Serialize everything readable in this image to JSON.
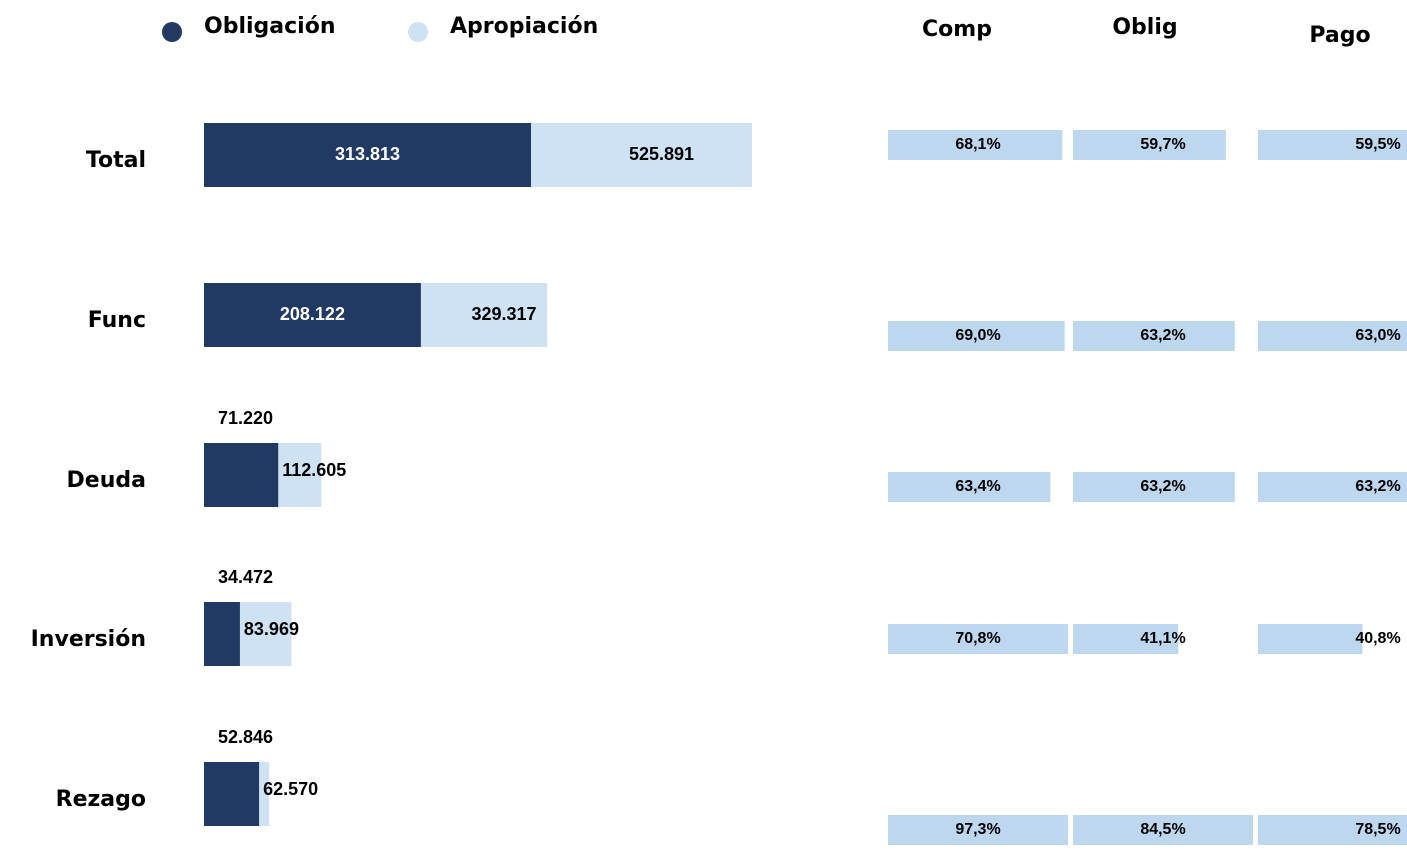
{
  "chart_data": {
    "type": "bar",
    "categories": [
      "Total",
      "Func",
      "Deuda",
      "Inversión",
      "Rezago"
    ],
    "series": [
      {
        "name": "Obligación",
        "color": "#213a63",
        "values": [
          313813,
          208122,
          71220,
          34472,
          52846
        ],
        "value_labels": [
          "313.813",
          "208.122",
          "71.220",
          "34.472",
          "52.846"
        ]
      },
      {
        "name": "Apropiación",
        "color": "#cfe2f3",
        "values": [
          525891,
          329317,
          112605,
          83969,
          62570
        ],
        "value_labels": [
          "525.891",
          "329.317",
          "112.605",
          "83.969",
          "62.570"
        ]
      }
    ],
    "table": {
      "color": "#bdd7ee",
      "columns": [
        {
          "name": "Comp",
          "values": [
            68.1,
            69.0,
            63.4,
            70.8,
            97.3
          ],
          "value_labels": [
            "68,1%",
            "69,0%",
            "63,4%",
            "70,8%",
            "97,3%"
          ]
        },
        {
          "name": "Oblig",
          "values": [
            59.7,
            63.2,
            63.2,
            41.1,
            84.5
          ],
          "value_labels": [
            "59,7%",
            "63,2%",
            "63,2%",
            "41,1%",
            "84,5%"
          ]
        },
        {
          "name": "Pago",
          "values": [
            59.5,
            63.0,
            63.2,
            40.8,
            78.5
          ],
          "value_labels": [
            "59,5%",
            "63,0%",
            "63,2%",
            "40,8%",
            "78,5%"
          ]
        }
      ]
    }
  }
}
